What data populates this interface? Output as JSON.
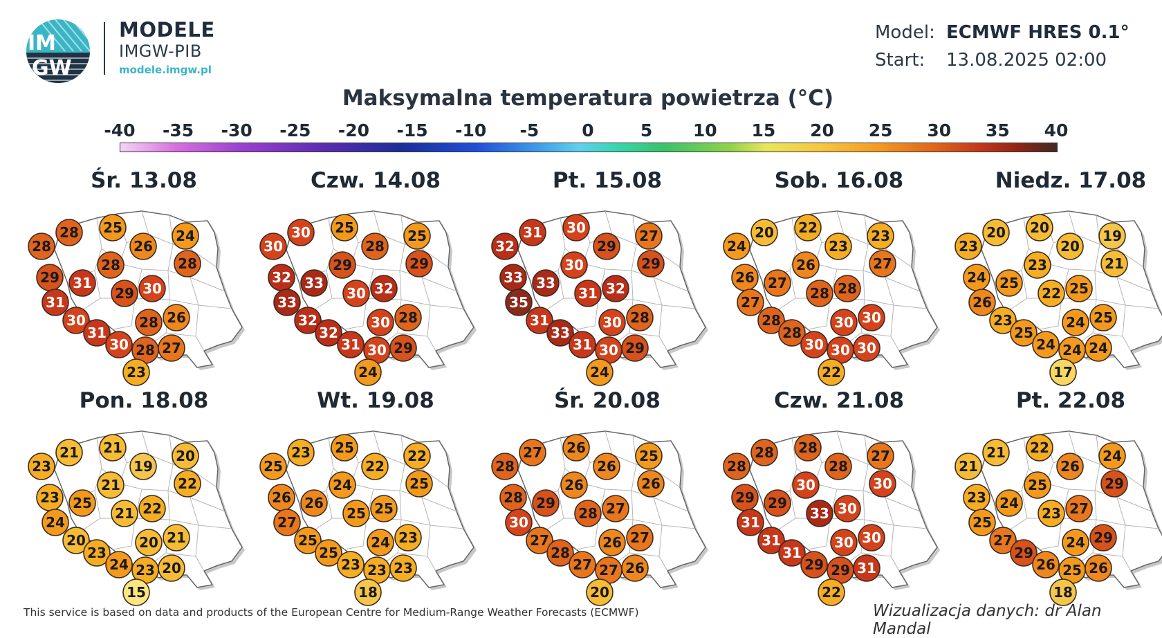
{
  "brand": {
    "logo_text_top": "IM",
    "logo_text_bottom": "GW",
    "title": "MODELE",
    "subtitle": "IMGW-PIB",
    "url": "modele.imgw.pl"
  },
  "meta": {
    "model_label": "Model:",
    "model_value": "ECMWF HRES 0.1°",
    "start_label": "Start:",
    "start_value": "13.08.2025 02:00"
  },
  "title": "Maksymalna temperatura powietrza (°C)",
  "colorbar": {
    "min": -40,
    "max": 40,
    "ticks": [
      "-40",
      "-35",
      "-30",
      "-25",
      "-20",
      "-15",
      "-10",
      "-5",
      "0",
      "5",
      "10",
      "15",
      "20",
      "25",
      "30",
      "35",
      "40"
    ]
  },
  "days": [
    {
      "date": "Śr. 13.08",
      "values": [
        28,
        28,
        25,
        24,
        26,
        28,
        29,
        31,
        28,
        31,
        30,
        29,
        30,
        28,
        26,
        31,
        30,
        28,
        27,
        23
      ]
    },
    {
      "date": "Czw. 14.08",
      "values": [
        30,
        30,
        25,
        25,
        28,
        29,
        32,
        33,
        29,
        33,
        32,
        30,
        32,
        30,
        28,
        32,
        31,
        30,
        29,
        24
      ]
    },
    {
      "date": "Pt. 15.08",
      "values": [
        32,
        31,
        30,
        27,
        29,
        29,
        33,
        33,
        30,
        35,
        31,
        31,
        32,
        30,
        28,
        33,
        31,
        30,
        29,
        24
      ]
    },
    {
      "date": "Sob. 16.08",
      "values": [
        24,
        20,
        22,
        23,
        23,
        27,
        26,
        27,
        26,
        27,
        28,
        28,
        28,
        30,
        30,
        28,
        30,
        30,
        30,
        22
      ]
    },
    {
      "date": "Niedz. 17.08",
      "values": [
        23,
        20,
        20,
        19,
        20,
        21,
        24,
        25,
        23,
        26,
        23,
        22,
        25,
        24,
        25,
        25,
        24,
        24,
        24,
        17
      ]
    },
    {
      "date": "Pon. 18.08",
      "values": [
        23,
        21,
        21,
        20,
        19,
        22,
        23,
        25,
        21,
        24,
        20,
        21,
        22,
        20,
        21,
        23,
        24,
        23,
        20,
        15
      ]
    },
    {
      "date": "Wt. 19.08",
      "values": [
        25,
        23,
        25,
        22,
        22,
        25,
        26,
        26,
        24,
        27,
        25,
        25,
        25,
        24,
        23,
        25,
        23,
        23,
        23,
        18
      ]
    },
    {
      "date": "Śr. 20.08",
      "values": [
        28,
        27,
        26,
        25,
        26,
        26,
        28,
        29,
        26,
        30,
        27,
        28,
        27,
        26,
        27,
        28,
        27,
        27,
        26,
        20
      ]
    },
    {
      "date": "Czw. 21.08",
      "values": [
        28,
        28,
        28,
        27,
        28,
        30,
        29,
        29,
        30,
        31,
        31,
        33,
        30,
        30,
        30,
        31,
        29,
        29,
        31,
        22
      ]
    },
    {
      "date": "Pt. 22.08",
      "values": [
        21,
        21,
        22,
        24,
        26,
        29,
        23,
        24,
        25,
        25,
        27,
        23,
        27,
        24,
        29,
        29,
        26,
        25,
        26,
        18
      ]
    }
  ],
  "footer": {
    "source": "This service is based on data and products of the European Centre for Medium-Range Weather Forecasts (ECMWF)",
    "credit": "Wizualizacja danych: dr Alan Mandal"
  }
}
